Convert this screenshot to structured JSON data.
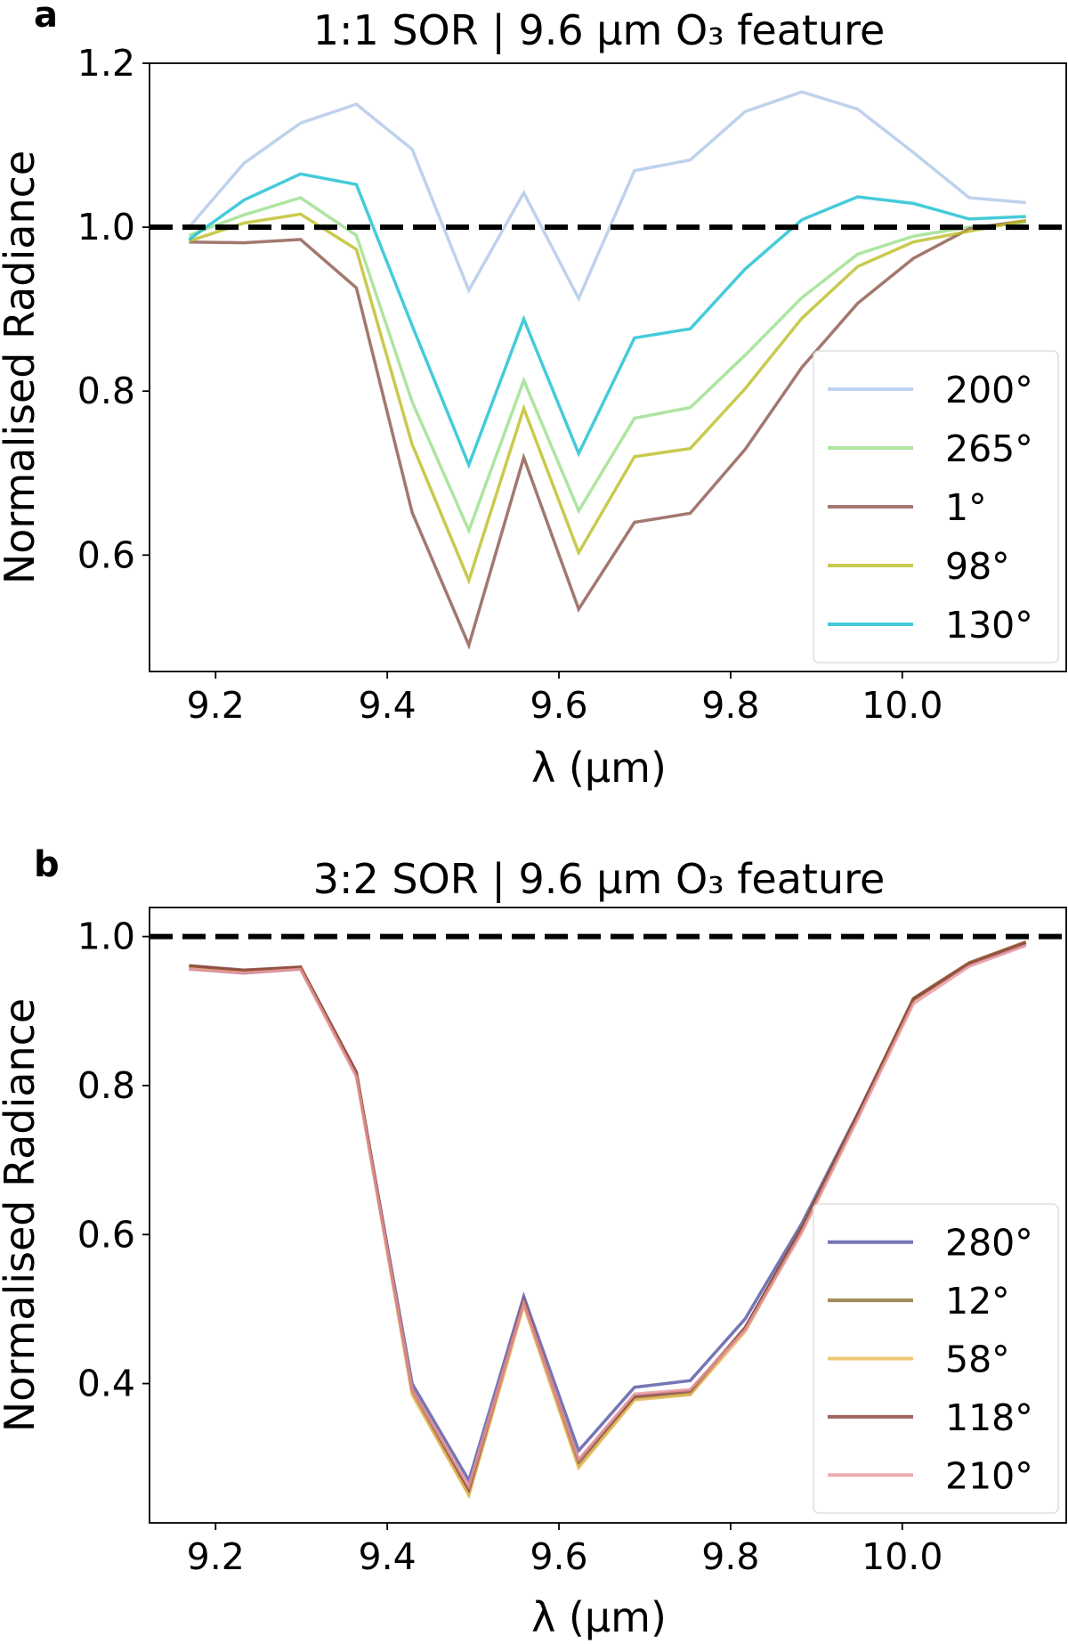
{
  "chart_data": [
    {
      "type": "line",
      "panel_label": "a",
      "title": "1:1 SOR | 9.6 μm O₃ feature",
      "xlabel": "λ (μm)",
      "ylabel": "Normalised Radiance",
      "xlim": [
        9.123,
        10.191
      ],
      "ylim": [
        0.458,
        1.2
      ],
      "xticks": [
        9.2,
        9.4,
        9.6,
        9.8,
        10.0
      ],
      "xtick_labels": [
        "9.2",
        "9.4",
        "9.6",
        "9.8",
        "10.0"
      ],
      "yticks": [
        0.6,
        0.8,
        1.0,
        1.2
      ],
      "ytick_labels": [
        "0.6",
        "0.8",
        "1.0",
        "1.2"
      ],
      "grid": false,
      "legend_position": "lower-right",
      "reference_line": {
        "y": 1.0,
        "style": "dashed",
        "color": "#000000"
      },
      "x": [
        9.169,
        9.233,
        9.299,
        9.364,
        9.429,
        9.495,
        9.559,
        9.623,
        9.688,
        9.753,
        9.817,
        9.883,
        9.948,
        10.013,
        10.078,
        10.144
      ],
      "series": [
        {
          "name": "200°",
          "color": "#aec7e8",
          "values": [
            1.0,
            1.078,
            1.127,
            1.15,
            1.095,
            0.923,
            1.042,
            0.913,
            1.069,
            1.082,
            1.141,
            1.165,
            1.144,
            1.091,
            1.036,
            1.03
          ]
        },
        {
          "name": "265°",
          "color": "#98df8a",
          "values": [
            0.99,
            1.015,
            1.036,
            0.99,
            0.787,
            0.63,
            0.813,
            0.654,
            0.767,
            0.78,
            0.844,
            0.914,
            0.967,
            0.989,
            1.0,
            1.006
          ]
        },
        {
          "name": "1°",
          "color": "#8c564b",
          "values": [
            0.982,
            0.981,
            0.985,
            0.926,
            0.652,
            0.49,
            0.719,
            0.534,
            0.64,
            0.651,
            0.729,
            0.829,
            0.907,
            0.962,
            0.998,
            1.008
          ]
        },
        {
          "name": "98°",
          "color": "#bcbd22",
          "values": [
            0.983,
            1.005,
            1.016,
            0.973,
            0.735,
            0.569,
            0.779,
            0.603,
            0.72,
            0.73,
            0.803,
            0.889,
            0.952,
            0.982,
            0.995,
            1.008
          ]
        },
        {
          "name": "130°",
          "color": "#17becf",
          "values": [
            0.985,
            1.033,
            1.065,
            1.052,
            0.88,
            0.71,
            0.888,
            0.724,
            0.865,
            0.876,
            0.949,
            1.009,
            1.037,
            1.029,
            1.01,
            1.013
          ]
        }
      ]
    },
    {
      "type": "line",
      "panel_label": "b",
      "title": "3:2 SOR | 9.6 μm O₃ feature",
      "xlabel": "λ (μm)",
      "ylabel": "Normalised Radiance",
      "xlim": [
        9.123,
        10.191
      ],
      "ylim": [
        0.213,
        1.039
      ],
      "xticks": [
        9.2,
        9.4,
        9.6,
        9.8,
        10.0
      ],
      "xtick_labels": [
        "9.2",
        "9.4",
        "9.6",
        "9.8",
        "10.0"
      ],
      "yticks": [
        0.4,
        0.6,
        0.8,
        1.0
      ],
      "ytick_labels": [
        "0.4",
        "0.6",
        "0.8",
        "1.0"
      ],
      "grid": false,
      "legend_position": "lower-right",
      "reference_line": {
        "y": 1.0,
        "style": "dashed",
        "color": "#000000"
      },
      "x": [
        9.169,
        9.233,
        9.299,
        9.364,
        9.429,
        9.495,
        9.559,
        9.623,
        9.688,
        9.753,
        9.817,
        9.883,
        9.948,
        10.013,
        10.078,
        10.144
      ],
      "series": [
        {
          "name": "280°",
          "color": "#5254a3",
          "values": [
            0.957,
            0.951,
            0.957,
            0.815,
            0.4,
            0.27,
            0.517,
            0.31,
            0.395,
            0.404,
            0.487,
            0.615,
            0.762,
            0.915,
            0.963,
            0.99
          ]
        },
        {
          "name": "12°",
          "color": "#8c6d31",
          "values": [
            0.96,
            0.954,
            0.959,
            0.817,
            0.388,
            0.252,
            0.508,
            0.29,
            0.38,
            0.386,
            0.475,
            0.61,
            0.761,
            0.917,
            0.965,
            0.993
          ]
        },
        {
          "name": "58°",
          "color": "#e7ba52",
          "values": [
            0.958,
            0.953,
            0.958,
            0.815,
            0.385,
            0.25,
            0.505,
            0.287,
            0.378,
            0.385,
            0.47,
            0.606,
            0.758,
            0.914,
            0.964,
            0.992
          ]
        },
        {
          "name": "118°",
          "color": "#843c39",
          "values": [
            0.961,
            0.955,
            0.959,
            0.818,
            0.392,
            0.258,
            0.511,
            0.296,
            0.383,
            0.39,
            0.475,
            0.608,
            0.76,
            0.916,
            0.964,
            0.992
          ]
        },
        {
          "name": "210°",
          "color": "#e7969c",
          "values": [
            0.956,
            0.951,
            0.956,
            0.812,
            0.392,
            0.262,
            0.508,
            0.298,
            0.386,
            0.392,
            0.472,
            0.603,
            0.755,
            0.91,
            0.96,
            0.988
          ]
        }
      ]
    }
  ]
}
